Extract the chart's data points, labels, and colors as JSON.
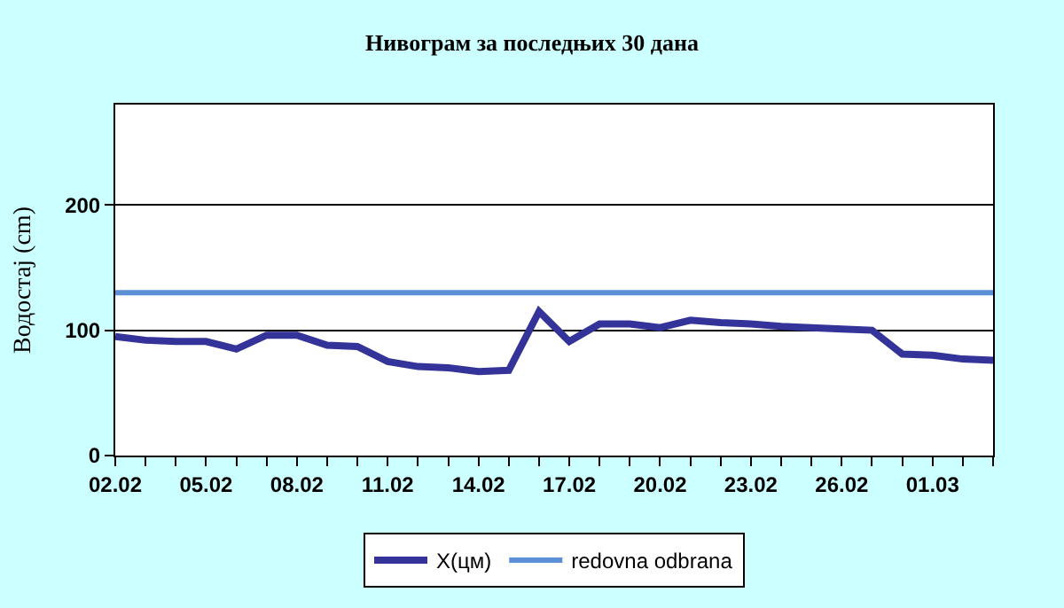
{
  "chart_data": {
    "type": "line",
    "title": "Нивограм за последњих 30 дана",
    "ylabel": "Водостај (cm)",
    "categories": [
      "02.02",
      null,
      null,
      "05.02",
      null,
      null,
      "08.02",
      null,
      null,
      "11.02",
      null,
      null,
      "14.02",
      null,
      null,
      "17.02",
      null,
      null,
      "20.02",
      null,
      null,
      "23.02",
      null,
      null,
      "26.02",
      null,
      null,
      "01.03",
      null,
      null
    ],
    "series": [
      {
        "name": "X(цм)",
        "color": "#333399",
        "values": [
          95,
          92,
          91,
          91,
          85,
          96,
          96,
          88,
          87,
          75,
          71,
          70,
          67,
          68,
          115,
          91,
          105,
          105,
          102,
          108,
          106,
          105,
          103,
          102,
          101,
          100,
          81,
          80,
          77,
          76
        ]
      }
    ],
    "ref_lines": [
      {
        "axis": "y",
        "value": 130,
        "label": "redovna odbrana",
        "color": "#5b8fd6"
      }
    ],
    "ylim": [
      0,
      280
    ],
    "yticks": [
      0,
      100,
      200
    ],
    "grid": "y",
    "legend": "bottom",
    "marker": "none",
    "line_style": "solid"
  }
}
